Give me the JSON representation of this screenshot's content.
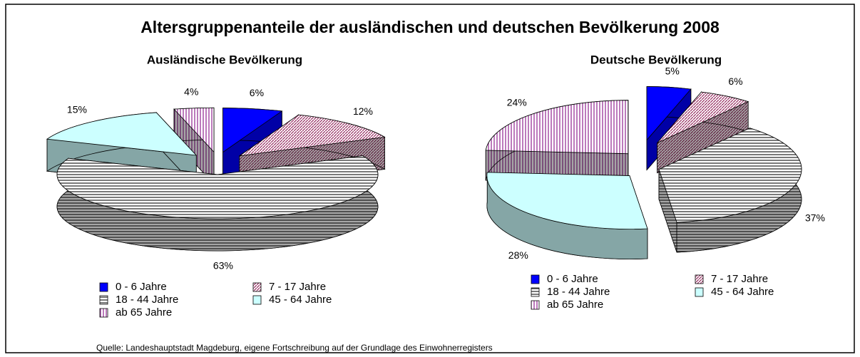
{
  "title": "Altersgruppenanteile der ausländischen und deutschen Bevölkerung 2008",
  "source": "Quelle: Landeshauptstadt Magdeburg, eigene Fortschreibung auf der Grundlage des Einwohnerregisters",
  "chart_data": [
    {
      "type": "pie",
      "title": "Ausländische Bevölkerung",
      "categories": [
        "0 - 6 Jahre",
        "7 - 17 Jahre",
        "18 - 44 Jahre",
        "45 - 64 Jahre",
        "ab 65 Jahre"
      ],
      "values": [
        6,
        12,
        63,
        15,
        4
      ],
      "value_labels": [
        "6%",
        "12%",
        "63%",
        "15%",
        "4%"
      ],
      "colors": [
        "#0000ff",
        "#993366",
        "#333333",
        "#ccffff",
        "#993399"
      ],
      "patterns": [
        "solid",
        "diagonal",
        "horizontal",
        "solid",
        "vertical"
      ]
    },
    {
      "type": "pie",
      "title": "Deutsche Bevölkerung",
      "categories": [
        "0 - 6 Jahre",
        "7 - 17 Jahre",
        "18 - 44 Jahre",
        "45 - 64 Jahre",
        "ab 65 Jahre"
      ],
      "values": [
        5,
        6,
        37,
        28,
        24
      ],
      "value_labels": [
        "5%",
        "6%",
        "37%",
        "28%",
        "24%"
      ],
      "colors": [
        "#0000ff",
        "#993366",
        "#333333",
        "#ccffff",
        "#993399"
      ],
      "patterns": [
        "solid",
        "diagonal",
        "horizontal",
        "solid",
        "vertical"
      ]
    }
  ]
}
